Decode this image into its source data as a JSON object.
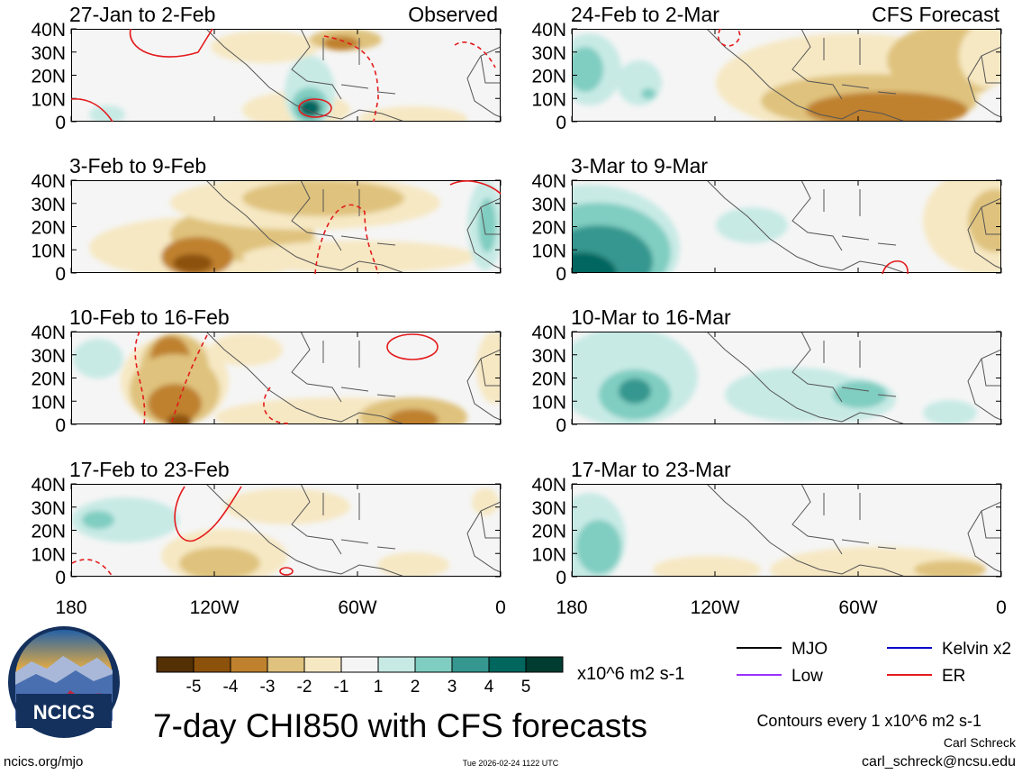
{
  "figure": {
    "title": "7-day CHI850 with CFS forecasts",
    "site": "ncics.org/mjo",
    "timestamp": "Tue 2026-02-24 1122 UTC",
    "author": "Carl Schreck",
    "email": "carl_schreck@ncsu.edu",
    "logo_text": "NCICS"
  },
  "left_column_label": "Observed",
  "right_column_label": "CFS Forecast",
  "panels_left": [
    {
      "title": "27-Jan to 2-Feb"
    },
    {
      "title": "3-Feb to 9-Feb"
    },
    {
      "title": "10-Feb to 16-Feb"
    },
    {
      "title": "17-Feb to 23-Feb"
    }
  ],
  "panels_right": [
    {
      "title": "24-Feb to 2-Mar"
    },
    {
      "title": "3-Mar to 9-Mar"
    },
    {
      "title": "10-Mar to 16-Mar"
    },
    {
      "title": "17-Mar to 23-Mar"
    }
  ],
  "chart_data": {
    "type": "heatmap",
    "variable": "7-day CHI850 anomaly",
    "units": "x10^6 m2 s-1",
    "y_axis": {
      "ticks": [
        "40N",
        "30N",
        "20N",
        "10N",
        "0"
      ],
      "range_deg": [
        0,
        40
      ]
    },
    "x_axis": {
      "ticks": [
        "180",
        "120W",
        "60W",
        "0"
      ],
      "range_deg": [
        -180,
        0
      ]
    },
    "colorbar": {
      "labels": [
        "-5",
        "-4",
        "-3",
        "-2",
        "-1",
        "1",
        "2",
        "3",
        "4",
        "5"
      ],
      "colors": [
        "#543005",
        "#8c510a",
        "#bf812d",
        "#dfc27d",
        "#f6e8c3",
        "#f5f5f5",
        "#c7eae5",
        "#80cdc1",
        "#35978f",
        "#01665e",
        "#003c30"
      ],
      "units": "x10^6 m2 s-1"
    },
    "legend": [
      {
        "label": "MJO",
        "color": "#000000"
      },
      {
        "label": "Kelvin x2",
        "color": "#0000cc"
      },
      {
        "label": "Low",
        "color": "#9b30ff"
      },
      {
        "label": "ER",
        "color": "#e41a1c"
      }
    ],
    "contour_note": "Contours every 1 x10^6 m2 s-1"
  }
}
